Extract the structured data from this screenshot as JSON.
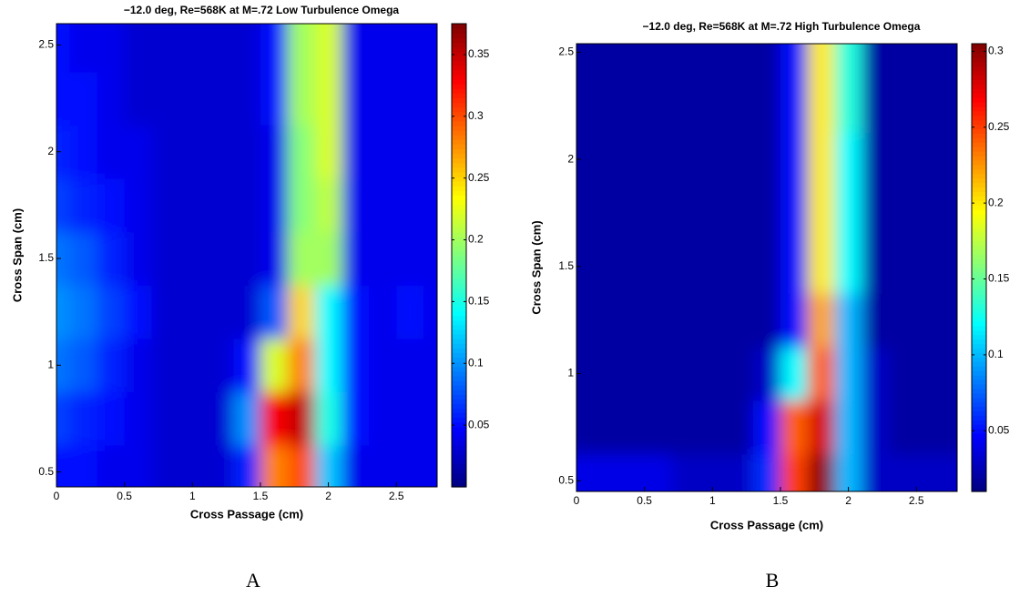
{
  "chart_data": [
    {
      "type": "contour",
      "title": "−12.0 deg, Re=568K at M=.72 Low Turbulence Omega",
      "x_label": "Cross Passage (cm)",
      "y_label": "Cross Span (cm)",
      "panel_label": "A",
      "colormap": "jet",
      "x": [
        0,
        0.2,
        0.4,
        0.6,
        0.8,
        1.0,
        1.2,
        1.4,
        1.6,
        1.8,
        2.0,
        2.2,
        2.4,
        2.6,
        2.8
      ],
      "y": [
        0.5,
        0.75,
        1.0,
        1.25,
        1.5,
        1.75,
        2.0,
        2.25,
        2.5
      ],
      "values": [
        [
          0.05,
          0.05,
          0.04,
          0.04,
          0.03,
          0.03,
          0.03,
          0.06,
          0.28,
          0.3,
          0.12,
          0.04,
          0.04,
          0.04,
          0.04
        ],
        [
          0.07,
          0.06,
          0.05,
          0.04,
          0.03,
          0.03,
          0.03,
          0.1,
          0.33,
          0.35,
          0.15,
          0.05,
          0.04,
          0.04,
          0.04
        ],
        [
          0.09,
          0.08,
          0.06,
          0.04,
          0.03,
          0.03,
          0.03,
          0.05,
          0.22,
          0.28,
          0.14,
          0.05,
          0.04,
          0.04,
          0.04
        ],
        [
          0.1,
          0.09,
          0.07,
          0.05,
          0.03,
          0.03,
          0.03,
          0.03,
          0.08,
          0.25,
          0.14,
          0.05,
          0.04,
          0.05,
          0.04
        ],
        [
          0.09,
          0.08,
          0.06,
          0.04,
          0.03,
          0.03,
          0.03,
          0.03,
          0.04,
          0.2,
          0.2,
          0.04,
          0.04,
          0.04,
          0.04
        ],
        [
          0.07,
          0.06,
          0.05,
          0.04,
          0.03,
          0.03,
          0.03,
          0.03,
          0.04,
          0.19,
          0.21,
          0.04,
          0.04,
          0.04,
          0.04
        ],
        [
          0.06,
          0.05,
          0.04,
          0.04,
          0.03,
          0.03,
          0.03,
          0.03,
          0.04,
          0.19,
          0.22,
          0.04,
          0.04,
          0.04,
          0.04
        ],
        [
          0.05,
          0.05,
          0.04,
          0.03,
          0.03,
          0.03,
          0.03,
          0.03,
          0.05,
          0.2,
          0.22,
          0.04,
          0.04,
          0.04,
          0.04
        ],
        [
          0.05,
          0.04,
          0.04,
          0.03,
          0.03,
          0.03,
          0.03,
          0.03,
          0.05,
          0.2,
          0.22,
          0.04,
          0.04,
          0.04,
          0.04
        ]
      ],
      "xlim": [
        0,
        2.8
      ],
      "xticks": [
        0,
        0.5,
        1,
        1.5,
        2,
        2.5
      ],
      "ylim": [
        0.43,
        2.6
      ],
      "yticks": [
        0.5,
        1,
        1.5,
        2,
        2.5
      ],
      "clim": [
        0,
        0.375
      ],
      "cticks": [
        0.05,
        0.1,
        0.15,
        0.2,
        0.25,
        0.3,
        0.35
      ]
    },
    {
      "type": "contour",
      "title": "−12.0 deg, Re=568K at M=.72 High Turbulence Omega",
      "x_label": "Cross Passage (cm)",
      "y_label": "Cross Span (cm)",
      "panel_label": "B",
      "colormap": "jet",
      "x": [
        0,
        0.2,
        0.4,
        0.6,
        0.8,
        1.0,
        1.2,
        1.4,
        1.6,
        1.8,
        2.0,
        2.2,
        2.4,
        2.6,
        2.8
      ],
      "y": [
        0.5,
        0.75,
        1.0,
        1.25,
        1.5,
        1.75,
        2.0,
        2.25,
        2.5
      ],
      "values": [
        [
          0.04,
          0.04,
          0.04,
          0.04,
          0.03,
          0.03,
          0.03,
          0.06,
          0.25,
          0.3,
          0.1,
          0.03,
          0.03,
          0.03,
          0.03
        ],
        [
          0.02,
          0.02,
          0.02,
          0.02,
          0.02,
          0.02,
          0.02,
          0.05,
          0.24,
          0.28,
          0.1,
          0.03,
          0.02,
          0.02,
          0.02
        ],
        [
          0.02,
          0.02,
          0.02,
          0.02,
          0.02,
          0.02,
          0.02,
          0.03,
          0.12,
          0.24,
          0.1,
          0.03,
          0.02,
          0.02,
          0.02
        ],
        [
          0.02,
          0.02,
          0.02,
          0.02,
          0.02,
          0.02,
          0.02,
          0.02,
          0.05,
          0.22,
          0.1,
          0.02,
          0.02,
          0.02,
          0.02
        ],
        [
          0.02,
          0.02,
          0.02,
          0.02,
          0.02,
          0.02,
          0.02,
          0.02,
          0.05,
          0.2,
          0.12,
          0.02,
          0.02,
          0.02,
          0.02
        ],
        [
          0.02,
          0.02,
          0.02,
          0.02,
          0.02,
          0.02,
          0.02,
          0.02,
          0.05,
          0.2,
          0.12,
          0.02,
          0.02,
          0.02,
          0.02
        ],
        [
          0.02,
          0.02,
          0.02,
          0.02,
          0.02,
          0.02,
          0.02,
          0.02,
          0.05,
          0.2,
          0.12,
          0.02,
          0.02,
          0.02,
          0.02
        ],
        [
          0.02,
          0.02,
          0.02,
          0.02,
          0.02,
          0.02,
          0.02,
          0.02,
          0.05,
          0.2,
          0.13,
          0.02,
          0.02,
          0.02,
          0.02
        ],
        [
          0.02,
          0.02,
          0.02,
          0.02,
          0.02,
          0.02,
          0.02,
          0.02,
          0.05,
          0.2,
          0.13,
          0.02,
          0.02,
          0.02,
          0.02
        ]
      ],
      "xlim": [
        0,
        2.8
      ],
      "xticks": [
        0,
        0.5,
        1,
        1.5,
        2,
        2.5
      ],
      "ylim": [
        0.45,
        2.54
      ],
      "yticks": [
        0.5,
        1,
        1.5,
        2,
        2.5
      ],
      "clim": [
        0.01,
        0.305
      ],
      "cticks": [
        0.05,
        0.1,
        0.15,
        0.2,
        0.25,
        0.3
      ]
    }
  ]
}
